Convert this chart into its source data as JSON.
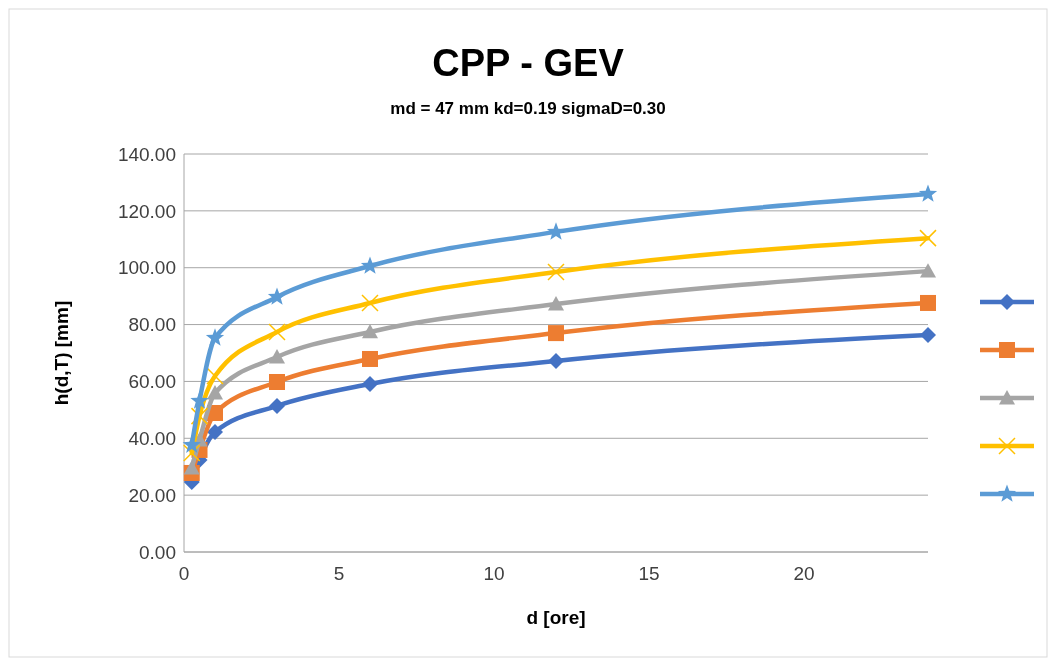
{
  "chart_data": {
    "type": "line",
    "title": "CPP - GEV",
    "subtitle": "md = 47 mm  kd=0.19 sigmaD=0.30",
    "xlabel": "d [ore]",
    "ylabel": "h(d,T) [mm]",
    "x": [
      0.25,
      0.5,
      1,
      3,
      6,
      12,
      24
    ],
    "xlim": [
      0,
      24
    ],
    "xticks": [
      0,
      5,
      10,
      15,
      20
    ],
    "ylim": [
      0,
      140
    ],
    "yticks": [
      {
        "value": 0,
        "label": "0.00"
      },
      {
        "value": 20,
        "label": "20.00"
      },
      {
        "value": 40,
        "label": "40.00"
      },
      {
        "value": 60,
        "label": "60.00"
      },
      {
        "value": 80,
        "label": "80.00"
      },
      {
        "value": 100,
        "label": "100.00"
      },
      {
        "value": 120,
        "label": "120.00"
      },
      {
        "value": 140,
        "label": "140.00"
      }
    ],
    "grid": "y",
    "series": [
      {
        "color": "#4472c4",
        "marker": "diamond",
        "values": [
          24.6,
          32.4,
          42.2,
          51.4,
          59.1,
          67.2,
          76.3
        ]
      },
      {
        "color": "#ed7d31",
        "marker": "square",
        "values": [
          27.8,
          35.9,
          48.9,
          59.8,
          67.9,
          77.0,
          87.6
        ]
      },
      {
        "color": "#a5a5a5",
        "marker": "triangle",
        "values": [
          29.5,
          39.4,
          55.9,
          68.6,
          77.4,
          87.2,
          98.8
        ]
      },
      {
        "color": "#ffc000",
        "marker": "cross",
        "values": [
          34.8,
          47.8,
          61.9,
          77.4,
          87.6,
          98.5,
          110.4
        ]
      },
      {
        "color": "#5b9bd5",
        "marker": "star",
        "values": [
          37.6,
          53.1,
          75.3,
          89.7,
          100.6,
          112.6,
          125.9
        ]
      }
    ]
  }
}
